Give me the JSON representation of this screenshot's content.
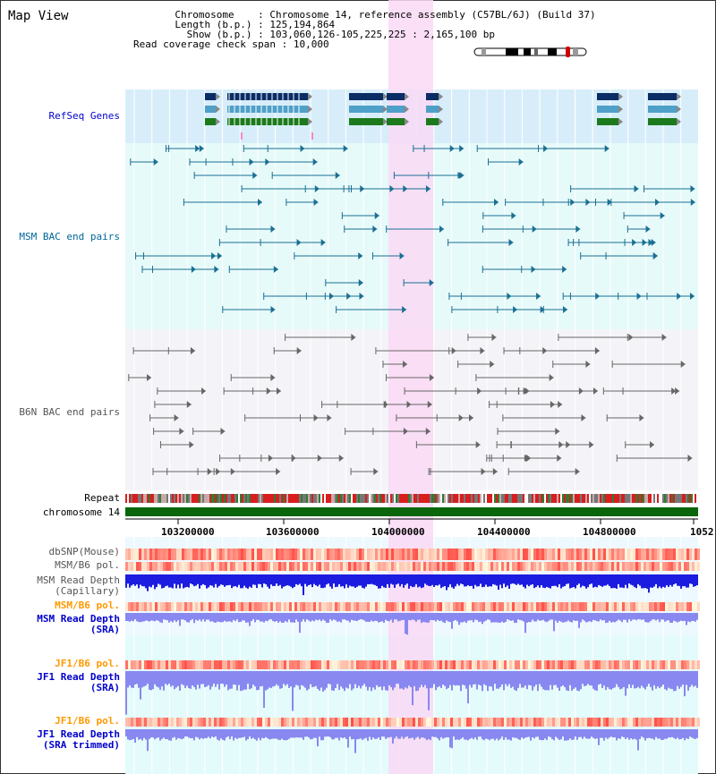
{
  "header": {
    "title": "Map View",
    "chromosome_key": "Chromosome",
    "chromosome_value": "Chromosome 14, reference assembly (C57BL/6J) (Build 37)",
    "length_key": "Length (b.p.)",
    "length_value": "125,194,864",
    "show_key": "Show (b.p.)",
    "show_value": "103,060,126-105,225,225 : 2,165,100 bp",
    "coverage_key": "Read coverage check span",
    "coverage_value": "10,000"
  },
  "tracks": {
    "refseq": {
      "label": "RefSeq Genes",
      "color": "#0000cc"
    },
    "msm_bac": {
      "label": "MSM BAC end pairs",
      "color": "#006699"
    },
    "b6n_bac": {
      "label": "B6N BAC end pairs",
      "color": "#555555"
    },
    "repeat": {
      "label": "Repeat"
    },
    "chromosome": {
      "label": "chromosome 14",
      "color": "#006600"
    },
    "dbsnp": {
      "label": "dbSNP(Mouse)"
    },
    "msm_b6_pol": {
      "label": "MSM/B6 pol."
    },
    "msm_depth_cap": {
      "label1": "MSM Read Depth",
      "label2": "(Capillary)"
    },
    "msm_b6_pol2": {
      "label": "MSM/B6 pol.",
      "color": "#ff9900"
    },
    "msm_depth_sra": {
      "label1": "MSM Read Depth",
      "label2": "(SRA)"
    },
    "jf1_b6_pol": {
      "label": "JF1/B6 pol.",
      "color": "#ff9900"
    },
    "jf1_depth_sra": {
      "label1": "JF1 Read Depth",
      "label2": "(SRA)"
    },
    "jf1_b6_pol2": {
      "label": "JF1/B6 pol.",
      "color": "#ff9900"
    },
    "jf1_depth_trim": {
      "label1": "JF1 Read Depth",
      "label2": "(SRA trimmed)"
    }
  },
  "axis": {
    "ticks": [
      "103200000",
      "103600000",
      "104000000",
      "104400000",
      "104800000",
      "1052"
    ]
  },
  "colors": {
    "highlight": "#f9d9f5",
    "refseq_bg": "#d7eefa",
    "msm_bg": "#e6fafa",
    "b6n_bg": "#f4f4f8",
    "depth_blue": "#1c1ce0",
    "depth_lavender": "#8888f0"
  }
}
